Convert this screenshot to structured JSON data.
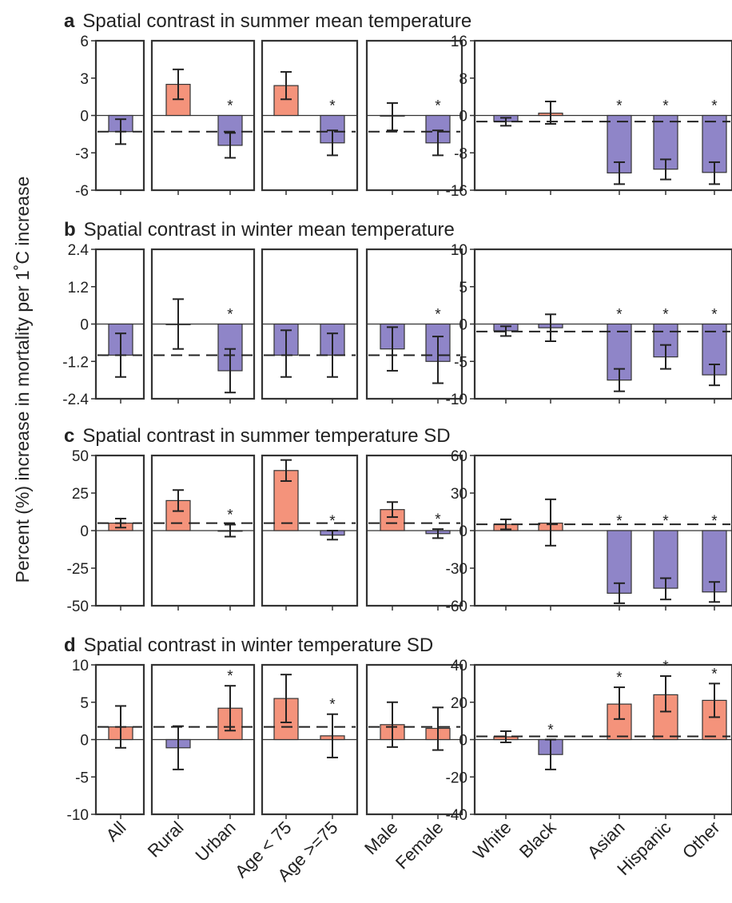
{
  "figure": {
    "ylabel": "Percent (%) increase in mortality per 1˚C increase",
    "categories": [
      "All",
      "Rural",
      "Urban",
      "Age < 75",
      "Age >=75",
      "Male",
      "Female",
      "White",
      "Black",
      "Asian",
      "Hispanic",
      "Other"
    ],
    "colors": {
      "positive": "#F4937B",
      "negative": "#8F85C8",
      "axis": "#333333"
    }
  },
  "chart_data": [
    {
      "type": "bar",
      "letter": "a",
      "title": "Spatial contrast in summer mean temperature",
      "reference": -1.3,
      "left_ylim": [
        -6,
        6
      ],
      "left_ticks": [
        6,
        3,
        0,
        -3,
        -6
      ],
      "right_ylim": [
        -16,
        16
      ],
      "right_ticks": [
        16,
        8,
        0,
        -8,
        -16
      ],
      "values": [
        -1.3,
        2.5,
        -2.4,
        2.4,
        -2.2,
        0.0,
        -2.2,
        -1.3,
        0.5,
        -12.3,
        -11.5,
        -12.2
      ],
      "ci_low": [
        -2.3,
        1.3,
        -3.4,
        1.3,
        -3.2,
        -1.2,
        -3.2,
        -2.2,
        -1.8,
        -14.7,
        -13.7,
        -14.7
      ],
      "ci_high": [
        -0.3,
        3.7,
        -1.4,
        3.5,
        -1.2,
        1.0,
        -1.2,
        -0.5,
        3.0,
        -10.0,
        -9.4,
        -10.0
      ],
      "significant": [
        false,
        false,
        true,
        false,
        true,
        false,
        true,
        false,
        false,
        true,
        true,
        true
      ]
    },
    {
      "type": "bar",
      "letter": "b",
      "title": "Spatial contrast in winter mean temperature",
      "reference": -1.0,
      "left_ylim": [
        -2.4,
        2.4
      ],
      "left_ticks": [
        2.4,
        1.2,
        0,
        -1.2,
        -2.4
      ],
      "right_ylim": [
        -10,
        10
      ],
      "right_ticks": [
        10,
        5,
        0,
        -5,
        -10
      ],
      "values": [
        -1.0,
        0.0,
        -1.5,
        -1.0,
        -1.0,
        -0.8,
        -1.2,
        -0.9,
        -0.5,
        -7.5,
        -4.4,
        -6.8
      ],
      "ci_low": [
        -1.7,
        -0.8,
        -2.2,
        -1.7,
        -1.7,
        -1.5,
        -1.9,
        -1.6,
        -2.3,
        -9.0,
        -6.0,
        -8.2
      ],
      "ci_high": [
        -0.3,
        0.8,
        -0.8,
        -0.2,
        -0.3,
        -0.1,
        -0.4,
        -0.3,
        1.3,
        -6.0,
        -2.8,
        -5.4
      ],
      "significant": [
        false,
        false,
        true,
        false,
        false,
        false,
        true,
        false,
        false,
        true,
        true,
        true
      ]
    },
    {
      "type": "bar",
      "letter": "c",
      "title": "Spatial contrast in summer temperature SD",
      "reference": 5,
      "left_ylim": [
        -50,
        50
      ],
      "left_ticks": [
        50,
        25,
        0,
        -25,
        -50
      ],
      "right_ylim": [
        -60,
        60
      ],
      "right_ticks": [
        60,
        30,
        0,
        -30,
        -60
      ],
      "values": [
        5,
        20,
        0,
        40,
        -3,
        14,
        -2,
        5,
        6,
        -50,
        -46,
        -49
      ],
      "ci_low": [
        2,
        13,
        -4,
        33,
        -6,
        9,
        -5,
        1,
        -12,
        -58,
        -55,
        -57
      ],
      "ci_high": [
        8,
        27,
        4,
        47,
        0,
        19,
        1,
        9,
        25,
        -42,
        -38,
        -41
      ],
      "significant": [
        false,
        false,
        true,
        false,
        true,
        false,
        true,
        false,
        false,
        true,
        true,
        true
      ]
    },
    {
      "type": "bar",
      "letter": "d",
      "title": "Spatial contrast in winter temperature SD",
      "reference": 1.7,
      "left_ylim": [
        -10,
        10
      ],
      "left_ticks": [
        10,
        5,
        0,
        -5,
        -10
      ],
      "right_ylim": [
        -40,
        40
      ],
      "right_ticks": [
        40,
        20,
        0,
        -20,
        -40
      ],
      "values": [
        1.7,
        -1.1,
        4.2,
        5.5,
        0.5,
        2.0,
        1.5,
        1.5,
        -8.0,
        19,
        24,
        21
      ],
      "ci_low": [
        -1.1,
        -4.0,
        1.2,
        2.3,
        -2.4,
        -1.0,
        -1.4,
        -1.5,
        -16,
        11,
        15,
        12
      ],
      "ci_high": [
        4.5,
        1.8,
        7.2,
        8.7,
        3.4,
        5.0,
        4.3,
        4.5,
        0,
        28,
        34,
        30
      ],
      "significant": [
        false,
        false,
        true,
        false,
        true,
        false,
        false,
        false,
        true,
        true,
        true,
        true
      ]
    }
  ]
}
